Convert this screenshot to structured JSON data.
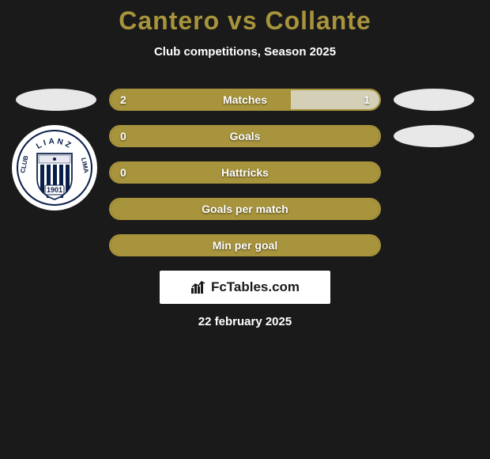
{
  "title": {
    "player1": "Cantero",
    "vs": "vs",
    "player2": "Collante",
    "color": "#a8943c"
  },
  "subtitle": "Club competitions, Season 2025",
  "colors": {
    "fill": "#a8943c",
    "border": "#a8943c",
    "border_empty": "#a8943c",
    "right_fill": "#d4d0b8",
    "text": "#ffffff",
    "background": "#1a1a1a"
  },
  "rows": [
    {
      "label": "Matches",
      "left_val": "2",
      "right_val": "1",
      "left_pct": 67,
      "right_pct": 33,
      "show_left_badge": true,
      "show_right_badge": true
    },
    {
      "label": "Goals",
      "left_val": "0",
      "right_val": "",
      "left_pct": 100,
      "right_pct": 0,
      "show_left_badge": false,
      "show_right_badge": true
    },
    {
      "label": "Hattricks",
      "left_val": "0",
      "right_val": "",
      "left_pct": 100,
      "right_pct": 0,
      "show_left_badge": false,
      "show_right_badge": false
    },
    {
      "label": "Goals per match",
      "left_val": "",
      "right_val": "",
      "left_pct": 100,
      "right_pct": 0,
      "show_left_badge": false,
      "show_right_badge": false
    },
    {
      "label": "Min per goal",
      "left_val": "",
      "right_val": "",
      "left_pct": 100,
      "right_pct": 0,
      "show_left_badge": false,
      "show_right_badge": false
    }
  ],
  "club_badge": {
    "top_text": "LIANZ",
    "bottom_text": "CLUB",
    "right_text": "LIMA",
    "year": "1901",
    "stripe_color": "#0a1e4a",
    "bg": "#ffffff"
  },
  "footer": {
    "logo_text": "FcTables.com",
    "date": "22 february 2025"
  }
}
